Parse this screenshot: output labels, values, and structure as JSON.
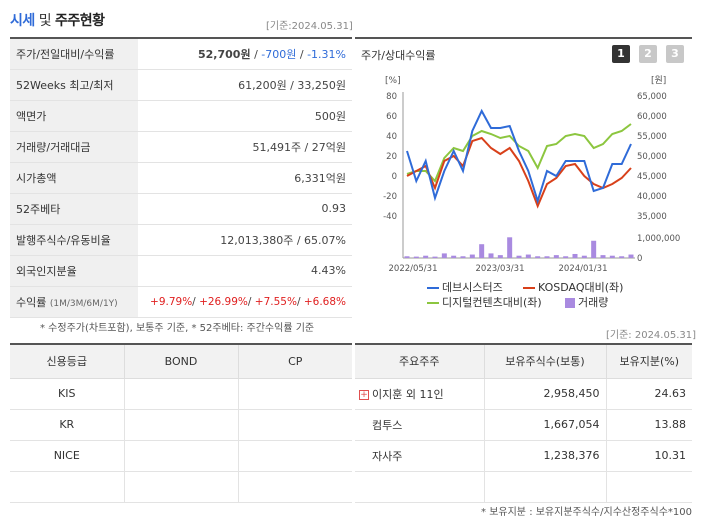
{
  "header": {
    "title_a": "시세",
    "title_b": " 및 ",
    "title_c": "주주현황",
    "asof": "[기준:2024.05.31]"
  },
  "summary": [
    {
      "label": "주가/전일대비/수익률"
    },
    {
      "label": "52Weeks 최고/최저",
      "value": "61,200원 / 33,250원"
    },
    {
      "label": "액면가",
      "value": "500원"
    },
    {
      "label": "거래량/거래대금",
      "value": "51,491주 / 27억원"
    },
    {
      "label": "시가총액",
      "value": "6,331억원"
    },
    {
      "label": "52주베타",
      "value": "0.93"
    },
    {
      "label": "발행주식수/유동비율",
      "value": "12,013,380주 / 65.07%"
    },
    {
      "label": "외국인지분율",
      "value": "4.43%"
    },
    {
      "label": "수익률",
      "sublabel": "(1M/3M/6M/1Y)"
    }
  ],
  "price": {
    "close": "52,700원",
    "sep1": " / ",
    "change": "-700원",
    "sep2": " / ",
    "pct": "-1.31%"
  },
  "returns": {
    "r1": "+9.79%",
    "r2": "+26.99%",
    "r3": "+7.55%",
    "r4": "+6.68%",
    "sep": "/ "
  },
  "note1": "* 수정주가(차트포함), 보통주 기준, * 52주베타: 주간수익률 기준",
  "chart": {
    "title": "주가/상대수익률",
    "buttons": [
      "1",
      "2",
      "3"
    ],
    "left_unit": "[%]",
    "right_unit": "[원]",
    "left_ticks": [
      "80",
      "60",
      "40",
      "20",
      "0",
      "-20",
      "-40"
    ],
    "right_ticks": [
      "65,000",
      "60,000",
      "55,000",
      "50,000",
      "45,000",
      "40,000",
      "35,000"
    ],
    "vol_tick": "1,000,000",
    "vol_zero": "0",
    "x_ticks": [
      "2022/05/31",
      "2023/03/31",
      "2024/01/31"
    ],
    "legend": {
      "s1": "데브시스터즈",
      "s2": "KOSDAQ대비(좌)",
      "s3": "디지털컨텐츠대비(좌)",
      "s4": "거래량"
    },
    "colors": {
      "s1": "#2f6bd8",
      "s2": "#d8401a",
      "s3": "#8cc63f",
      "s4": "#a98ae0"
    }
  },
  "chart_data": {
    "type": "line",
    "x_ticks": [
      "2022/05/31",
      "2023/03/31",
      "2024/01/31"
    ],
    "ylim_left": [
      -40,
      80
    ],
    "ylim_right": [
      35000,
      65000
    ],
    "series": [
      {
        "name": "데브시스터즈",
        "axis": "left",
        "values": [
          25,
          -5,
          15,
          -22,
          5,
          25,
          5,
          45,
          65,
          48,
          48,
          50,
          25,
          5,
          -25,
          5,
          0,
          15,
          15,
          15,
          -15,
          -12,
          12,
          12,
          32
        ]
      },
      {
        "name": "KOSDAQ대비(좌)",
        "axis": "left",
        "values": [
          0,
          5,
          10,
          -12,
          15,
          20,
          10,
          35,
          38,
          28,
          22,
          28,
          15,
          -5,
          -30,
          -8,
          -2,
          10,
          12,
          0,
          -8,
          -12,
          -8,
          -2,
          8
        ]
      },
      {
        "name": "디지털컨텐츠대비(좌)",
        "axis": "left",
        "values": [
          2,
          5,
          5,
          -5,
          18,
          28,
          25,
          40,
          45,
          42,
          38,
          40,
          30,
          25,
          8,
          30,
          32,
          40,
          42,
          40,
          28,
          32,
          42,
          45,
          52
        ]
      },
      {
        "name": "거래량",
        "axis": "volume",
        "values": [
          150000,
          120000,
          200000,
          120000,
          400000,
          200000,
          150000,
          300000,
          1200000,
          400000,
          250000,
          1800000,
          200000,
          300000,
          150000,
          150000,
          250000,
          150000,
          350000,
          200000,
          1500000,
          250000,
          200000,
          150000,
          300000
        ]
      }
    ],
    "volume_ylim": [
      0,
      2000000
    ]
  },
  "credit": {
    "headers": [
      "신용등급",
      "BOND",
      "CP"
    ],
    "rows": [
      [
        "KIS",
        "",
        ""
      ],
      [
        "KR",
        "",
        ""
      ],
      [
        "NICE",
        "",
        ""
      ],
      [
        "",
        "",
        ""
      ]
    ]
  },
  "holders": {
    "headers": [
      "주요주주",
      "보유주식수(보통)",
      "보유지분(%)"
    ],
    "rows": [
      [
        "이지훈 외 11인",
        "2,958,450",
        "24.63"
      ],
      [
        "컴투스",
        "1,667,054",
        "13.88"
      ],
      [
        "자사주",
        "1,238,376",
        "10.31"
      ],
      [
        "",
        "",
        ""
      ]
    ],
    "asof": "[기준: 2024.05.31]",
    "plus": "+"
  },
  "note2": "* 보유지분 : 보유지분주식수/지수산정주식수*100"
}
